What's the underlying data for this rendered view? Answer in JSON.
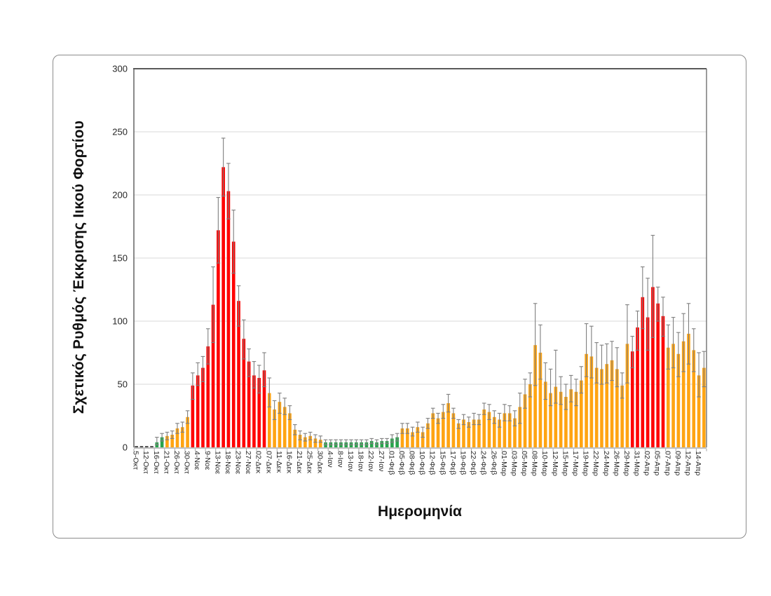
{
  "page": {
    "background": "#FFFFFF"
  },
  "chart_data": {
    "type": "bar",
    "title": "",
    "xlabel": "Ημερομηνία",
    "ylabel": "Σχετικός Ρυθμός Έκκρισης Ιικού Φορτίου",
    "ylim": [
      0,
      300
    ],
    "y_ticks": [
      0,
      50,
      100,
      150,
      200,
      250,
      300
    ],
    "grid": "horizontal",
    "legend": "none",
    "label_every": 2,
    "x_tick_labels": [
      "5-Οκτ",
      "12-Οκτ",
      "16-Οκτ",
      "21-Οκτ",
      "26-Οκτ",
      "30-Οκτ",
      "4-Νοε",
      "9-Νοε",
      "13-Νοε",
      "18-Νοε",
      "23-Νοε",
      "27-Νοε",
      "02-Δεκ",
      "07-Δεκ",
      "11-Δεκ",
      "16-Δεκ",
      "21-Δεκ",
      "25-Δεκ",
      "30-Δεκ",
      "4-Ιαν",
      "8-Ιαν",
      "13-Ιαν",
      "18-Ιαν",
      "22-Ιαν",
      "27-Ιαν",
      "01-Φεβ",
      "05-Φεβ",
      "08-Φεβ",
      "10-Φεβ",
      "12-Φεβ",
      "15-Φεβ",
      "17-Φεβ",
      "19-Φεβ",
      "22-Φεβ",
      "24-Φεβ",
      "26-Φεβ",
      "01-Μαρ",
      "03-Μαρ",
      "05-Μαρ",
      "08-Μαρ",
      "10-Μαρ",
      "12-Μαρ",
      "15-Μαρ",
      "17-Μαρ",
      "19-Μαρ",
      "22-Μαρ",
      "24-Μαρ",
      "26-Μαρ",
      "29-Μαρ",
      "31-Μαρ",
      "02-Απρ",
      "05-Απρ",
      "07-Απρ",
      "09-Απρ",
      "12-Απρ",
      "14-Απρ"
    ],
    "values": [
      1,
      1,
      1,
      1,
      4,
      8,
      9,
      10,
      15,
      16,
      24,
      49,
      57,
      63,
      80,
      113,
      172,
      222,
      203,
      163,
      116,
      86,
      68,
      57,
      55,
      61,
      43,
      30,
      36,
      32,
      27,
      14,
      10,
      8,
      9,
      7,
      6,
      4,
      4,
      4,
      4,
      4,
      4,
      4,
      4,
      4,
      5,
      4,
      5,
      5,
      7,
      8,
      15,
      15,
      12,
      16,
      12,
      19,
      27,
      23,
      28,
      35,
      27,
      19,
      22,
      20,
      22,
      22,
      30,
      28,
      24,
      22,
      27,
      27,
      23,
      32,
      42,
      50,
      81,
      75,
      52,
      43,
      48,
      44,
      40,
      46,
      44,
      53,
      74,
      72,
      63,
      62,
      66,
      69,
      62,
      49,
      82,
      76,
      95,
      119,
      103,
      127,
      114,
      104,
      79,
      82,
      74,
      84,
      90,
      77,
      57,
      63
    ],
    "err_high": [
      1,
      1,
      1,
      1,
      8,
      11,
      12,
      13,
      19,
      20,
      29,
      59,
      67,
      72,
      94,
      143,
      198,
      245,
      225,
      188,
      128,
      101,
      78,
      68,
      65,
      75,
      55,
      37,
      43,
      39,
      33,
      18,
      13,
      11,
      12,
      10,
      9,
      6,
      6,
      6,
      6,
      6,
      6,
      6,
      6,
      6,
      7,
      6,
      7,
      7,
      10,
      11,
      19,
      19,
      16,
      20,
      16,
      23,
      31,
      27,
      34,
      42,
      31,
      22,
      26,
      24,
      27,
      26,
      35,
      34,
      29,
      27,
      34,
      33,
      29,
      43,
      54,
      59,
      114,
      97,
      67,
      62,
      77,
      56,
      50,
      57,
      54,
      64,
      98,
      96,
      83,
      81,
      82,
      84,
      79,
      59,
      113,
      88,
      108,
      143,
      134,
      168,
      127,
      119,
      97,
      103,
      91,
      106,
      114,
      94,
      75,
      76
    ],
    "err_low": [
      1,
      1,
      1,
      1,
      2,
      5,
      6,
      7,
      11,
      12,
      19,
      38,
      49,
      52,
      66,
      83,
      146,
      199,
      181,
      138,
      96,
      70,
      56,
      47,
      43,
      48,
      32,
      22,
      27,
      26,
      22,
      10,
      6,
      5,
      6,
      4,
      4,
      2,
      2,
      2,
      2,
      2,
      2,
      2,
      2,
      2,
      3,
      2,
      3,
      3,
      4,
      5,
      11,
      11,
      9,
      12,
      8,
      15,
      23,
      19,
      23,
      28,
      23,
      15,
      18,
      16,
      18,
      18,
      26,
      22,
      19,
      16,
      21,
      21,
      17,
      19,
      31,
      40,
      49,
      54,
      38,
      33,
      35,
      34,
      30,
      36,
      33,
      43,
      56,
      55,
      51,
      50,
      51,
      53,
      48,
      39,
      51,
      63,
      77,
      94,
      77,
      87,
      100,
      88,
      62,
      63,
      56,
      60,
      66,
      60,
      40,
      48
    ],
    "color_runs": [
      [
        4,
        "d"
      ],
      [
        2,
        "g"
      ],
      [
        5,
        "o"
      ],
      [
        15,
        "r"
      ],
      [
        11,
        "o"
      ],
      [
        15,
        "g"
      ],
      [
        45,
        "o"
      ],
      [
        7,
        "r"
      ],
      [
        8,
        "o"
      ]
    ],
    "palette": {
      "d": "#404040",
      "g": "#28A44B",
      "o": "#FFA412",
      "r": "#FF0000"
    },
    "error_color": "#7F7F7F",
    "axis_colors": {
      "border": "#595959",
      "baseline": "#BFBFBF",
      "gridline": "#D9D9D9",
      "tick": "#A6A6A6",
      "text": "#262626"
    }
  }
}
